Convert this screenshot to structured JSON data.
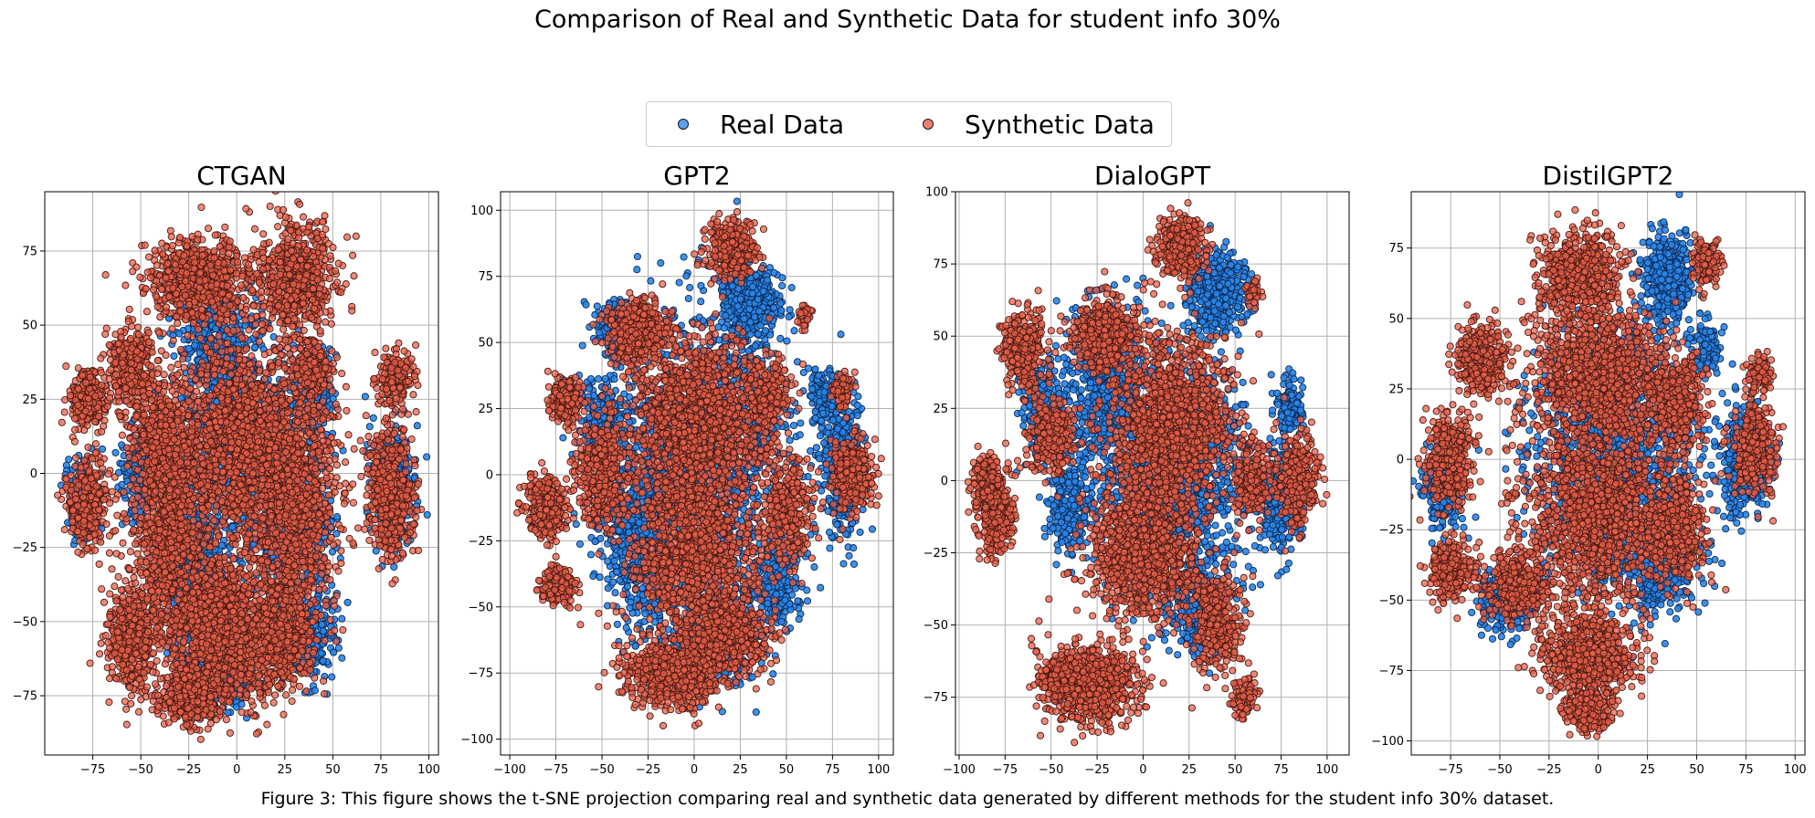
{
  "figure": {
    "title": "Comparison of Real and Synthetic Data for student info 30%",
    "caption": "Figure 3: This figure shows the t-SNE projection comparing real and synthetic data generated by different methods for the student info 30% dataset."
  },
  "legend": {
    "placement": "top-center",
    "items": [
      {
        "label": "Real Data",
        "color": "#3a8ee6"
      },
      {
        "label": "Synthetic Data",
        "color": "#ee6a55"
      }
    ]
  },
  "colors": {
    "real_fill": "#2a85e8",
    "real_edge": "#0d2a55",
    "synthetic_fill": "#e8604a",
    "synthetic_edge": "#4a1a14",
    "grid": "#b0b0b0"
  },
  "chart_data": [
    {
      "type": "scatter",
      "title": "CTGAN",
      "xlabel": "",
      "ylabel": "",
      "xlim": [
        -100,
        105
      ],
      "ylim": [
        -95,
        95
      ],
      "xticks": [
        -75,
        -50,
        -25,
        0,
        25,
        50,
        75,
        100
      ],
      "yticks": [
        -75,
        -50,
        -25,
        0,
        25,
        50,
        75
      ],
      "grid": true,
      "series": [
        {
          "role": "real",
          "clusters": [
            [
              5,
              10,
              30,
              35,
              900
            ],
            [
              -25,
              -30,
              15,
              30,
              600
            ],
            [
              30,
              -20,
              18,
              35,
              500
            ],
            [
              -12,
              45,
              18,
              15,
              300
            ],
            [
              35,
              -55,
              14,
              12,
              250
            ],
            [
              -80,
              -10,
              8,
              12,
              200
            ],
            [
              82,
              -5,
              10,
              18,
              300
            ],
            [
              -10,
              -70,
              18,
              10,
              250
            ],
            [
              42,
              30,
              8,
              10,
              150
            ],
            [
              -50,
              0,
              10,
              15,
              200
            ]
          ]
        },
        {
          "role": "synthetic",
          "clusters": [
            [
              -20,
              65,
              22,
              12,
              700
            ],
            [
              30,
              65,
              18,
              17,
              650
            ],
            [
              -5,
              -60,
              30,
              18,
              800
            ],
            [
              5,
              10,
              38,
              32,
              1700
            ],
            [
              -35,
              -20,
              18,
              28,
              800
            ],
            [
              30,
              -15,
              20,
              32,
              800
            ],
            [
              -78,
              25,
              8,
              8,
              300
            ],
            [
              -78,
              -10,
              9,
              14,
              350
            ],
            [
              -55,
              35,
              12,
              12,
              350
            ],
            [
              -40,
              10,
              12,
              16,
              400
            ],
            [
              80,
              -8,
              11,
              20,
              500
            ],
            [
              82,
              32,
              8,
              8,
              200
            ],
            [
              40,
              35,
              8,
              8,
              150
            ],
            [
              -10,
              -45,
              20,
              15,
              500
            ],
            [
              -55,
              -55,
              12,
              15,
              500
            ],
            [
              25,
              -55,
              14,
              15,
              400
            ],
            [
              -25,
              -75,
              15,
              8,
              350
            ]
          ]
        }
      ]
    },
    {
      "type": "scatter",
      "title": "GPT2",
      "xlabel": "",
      "ylabel": "",
      "xlim": [
        -105,
        108
      ],
      "ylim": [
        -106,
        107
      ],
      "xticks": [
        -100,
        -75,
        -50,
        -25,
        0,
        25,
        50,
        75,
        100
      ],
      "yticks": [
        -100,
        -75,
        -50,
        -25,
        0,
        25,
        50,
        75,
        100
      ],
      "grid": true,
      "series": [
        {
          "role": "real",
          "clusters": [
            [
              30,
              65,
              14,
              12,
              500
            ],
            [
              -30,
              -20,
              20,
              35,
              700
            ],
            [
              10,
              10,
              40,
              45,
              1200
            ],
            [
              80,
              5,
              10,
              22,
              500
            ],
            [
              -50,
              20,
              12,
              15,
              250
            ],
            [
              45,
              -40,
              12,
              15,
              250
            ],
            [
              -40,
              55,
              12,
              10,
              250
            ],
            [
              70,
              30,
              6,
              8,
              150
            ],
            [
              10,
              -60,
              25,
              20,
              400
            ]
          ]
        },
        {
          "role": "synthetic",
          "clusters": [
            [
              20,
              85,
              12,
              10,
              350
            ],
            [
              -30,
              55,
              15,
              10,
              450
            ],
            [
              0,
              20,
              35,
              30,
              1400
            ],
            [
              0,
              -30,
              30,
              28,
              1100
            ],
            [
              -10,
              -75,
              25,
              12,
              700
            ],
            [
              -80,
              -12,
              10,
              10,
              350
            ],
            [
              -75,
              -42,
              8,
              6,
              250
            ],
            [
              -70,
              28,
              7,
              8,
              220
            ],
            [
              -50,
              0,
              12,
              18,
              400
            ],
            [
              85,
              0,
              10,
              12,
              300
            ],
            [
              50,
              -15,
              12,
              18,
              350
            ],
            [
              40,
              30,
              10,
              12,
              250
            ],
            [
              20,
              -60,
              20,
              12,
              450
            ],
            [
              80,
              32,
              5,
              6,
              100
            ],
            [
              60,
              60,
              4,
              5,
              40
            ]
          ]
        }
      ]
    },
    {
      "type": "scatter",
      "title": "DialoGPT",
      "xlabel": "",
      "ylabel": "",
      "xlim": [
        -102,
        112
      ],
      "ylim": [
        -95,
        100
      ],
      "xticks": [
        -100,
        -75,
        -50,
        -25,
        0,
        25,
        50,
        75,
        100
      ],
      "yticks": [
        -75,
        -50,
        -25,
        0,
        25,
        50,
        75,
        100
      ],
      "grid": true,
      "series": [
        {
          "role": "real",
          "clusters": [
            [
              40,
              65,
              14,
              12,
              450
            ],
            [
              -20,
              30,
              20,
              25,
              600
            ],
            [
              20,
              0,
              35,
              40,
              1200
            ],
            [
              75,
              -5,
              10,
              15,
              400
            ],
            [
              -55,
              25,
              10,
              15,
              250
            ],
            [
              30,
              -45,
              14,
              12,
              300
            ],
            [
              80,
              25,
              6,
              8,
              150
            ],
            [
              -40,
              -10,
              12,
              14,
              250
            ]
          ]
        },
        {
          "role": "synthetic",
          "clusters": [
            [
              20,
              80,
              12,
              10,
              350
            ],
            [
              -20,
              50,
              16,
              12,
              450
            ],
            [
              15,
              20,
              30,
              28,
              1300
            ],
            [
              0,
              -25,
              28,
              22,
              1000
            ],
            [
              -25,
              -70,
              20,
              12,
              600
            ],
            [
              -80,
              -10,
              9,
              14,
              350
            ],
            [
              -85,
              0,
              6,
              8,
              150
            ],
            [
              -65,
              45,
              10,
              12,
              350
            ],
            [
              -50,
              15,
              10,
              12,
              300
            ],
            [
              40,
              -50,
              12,
              15,
              350
            ],
            [
              85,
              0,
              10,
              14,
              300
            ],
            [
              60,
              0,
              10,
              12,
              200
            ],
            [
              55,
              -75,
              6,
              6,
              100
            ],
            [
              -45,
              -70,
              12,
              10,
              300
            ],
            [
              60,
              65,
              4,
              4,
              40
            ]
          ]
        }
      ]
    },
    {
      "type": "scatter",
      "title": "DistilGPT2",
      "xlabel": "",
      "ylabel": "",
      "xlim": [
        -95,
        105
      ],
      "ylim": [
        -105,
        95
      ],
      "xticks": [
        -75,
        -50,
        -25,
        0,
        25,
        50,
        75,
        100
      ],
      "yticks": [
        -100,
        -75,
        -50,
        -25,
        0,
        25,
        50,
        75
      ],
      "grid": true,
      "series": [
        {
          "role": "real",
          "clusters": [
            [
              35,
              65,
              12,
              14,
              450
            ],
            [
              75,
              0,
              10,
              18,
              450
            ],
            [
              -80,
              -10,
              8,
              14,
              250
            ],
            [
              10,
              0,
              40,
              40,
              1300
            ],
            [
              -45,
              -50,
              15,
              10,
              300
            ],
            [
              30,
              -40,
              15,
              15,
              300
            ],
            [
              55,
              40,
              6,
              8,
              120
            ]
          ]
        },
        {
          "role": "synthetic",
          "clusters": [
            [
              -10,
              65,
              18,
              14,
              600
            ],
            [
              0,
              30,
              30,
              20,
              1100
            ],
            [
              0,
              -20,
              35,
              28,
              1300
            ],
            [
              -5,
              -70,
              22,
              14,
              700
            ],
            [
              -5,
              -90,
              10,
              6,
              250
            ],
            [
              -75,
              0,
              10,
              15,
              350
            ],
            [
              -60,
              35,
              12,
              12,
              350
            ],
            [
              -75,
              -40,
              10,
              10,
              300
            ],
            [
              40,
              20,
              12,
              15,
              400
            ],
            [
              80,
              5,
              10,
              15,
              350
            ],
            [
              40,
              -25,
              14,
              15,
              400
            ],
            [
              55,
              70,
              6,
              8,
              150
            ],
            [
              82,
              30,
              6,
              6,
              100
            ],
            [
              -40,
              -45,
              14,
              10,
              350
            ]
          ]
        }
      ]
    }
  ]
}
